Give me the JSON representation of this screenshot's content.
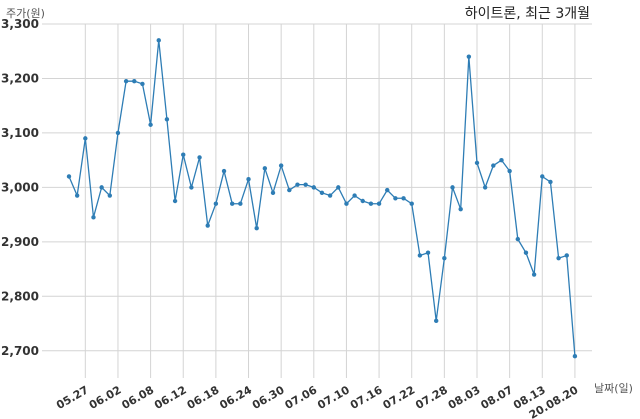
{
  "chart_data": {
    "type": "line",
    "title": "하이트론, 최근 3개월",
    "ylabel": "주가(원)",
    "xlabel": "날짜(일)",
    "ylim": [
      2650,
      3300
    ],
    "yticks": [
      2700,
      2800,
      2900,
      3000,
      3100,
      3200,
      3300
    ],
    "ytick_labels": [
      "2,700",
      "2,800",
      "2,900",
      "3,000",
      "3,100",
      "3,200",
      "3,300"
    ],
    "xtick_labels": [
      "05.27",
      "06.02",
      "06.08",
      "06.12",
      "06.18",
      "06.24",
      "06.30",
      "07.06",
      "07.10",
      "07.16",
      "07.22",
      "07.28",
      "08.03",
      "08.07",
      "08.13",
      "20.08.20"
    ],
    "xtick_index": [
      2,
      6,
      10,
      14,
      18,
      22,
      26,
      30,
      34,
      38,
      42,
      46,
      50,
      54,
      58,
      62
    ],
    "grid": true,
    "color": "#2e7db5",
    "values": [
      3020,
      2985,
      3090,
      2945,
      3000,
      2985,
      3100,
      3195,
      3195,
      3190,
      3115,
      3270,
      3125,
      2975,
      3060,
      3000,
      3055,
      2930,
      2970,
      3030,
      2970,
      2970,
      3015,
      2925,
      3035,
      2990,
      3040,
      2995,
      3005,
      3005,
      3000,
      2990,
      2985,
      3000,
      2970,
      2985,
      2975,
      2970,
      2970,
      2995,
      2980,
      2980,
      2970,
      2875,
      2880,
      2755,
      2870,
      3000,
      2960,
      3240,
      3045,
      3000,
      3040,
      3050,
      3030,
      2905,
      2880,
      2840,
      3020,
      3010,
      2870,
      2875,
      2690
    ]
  }
}
